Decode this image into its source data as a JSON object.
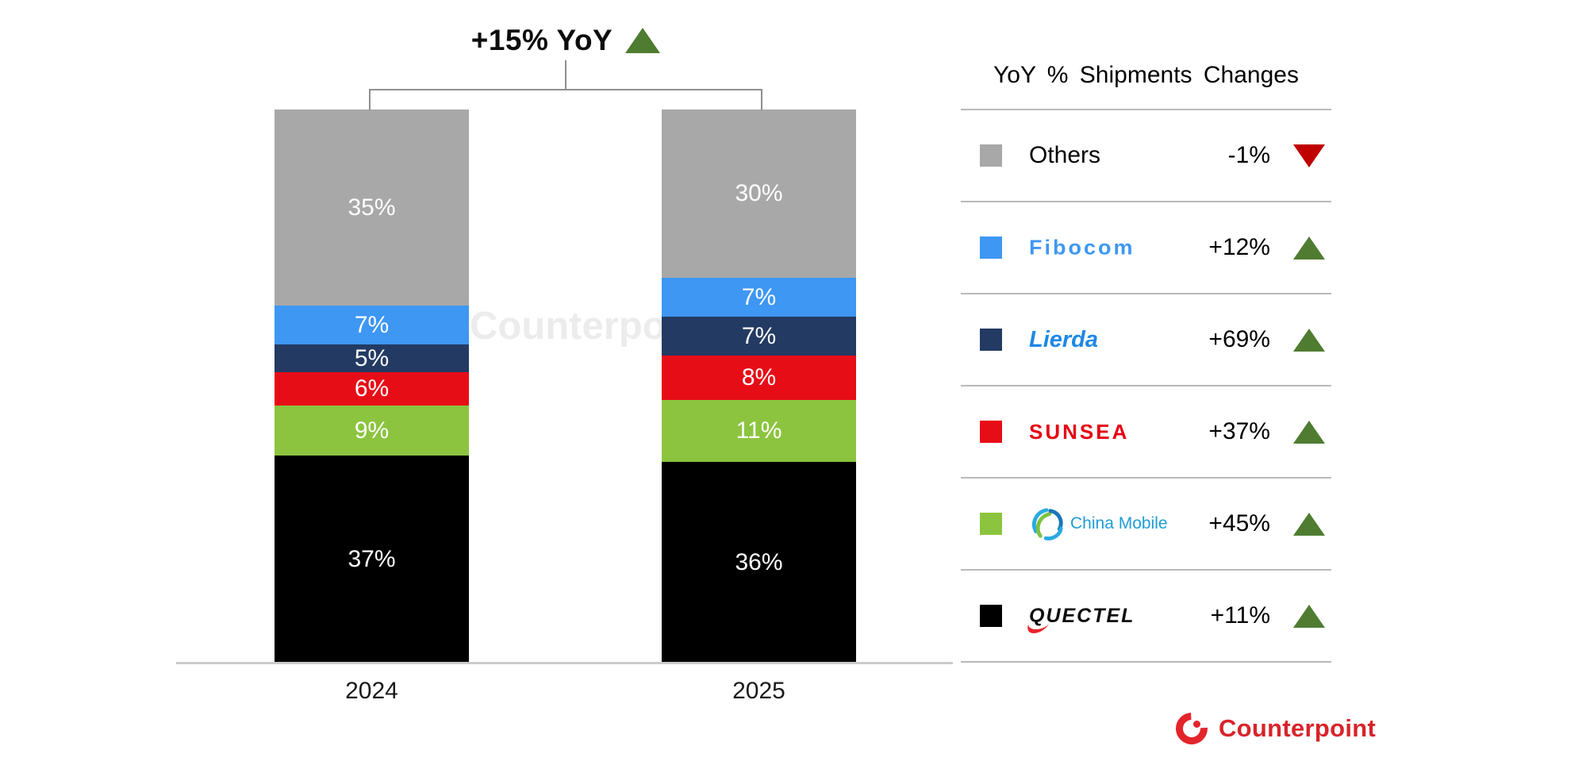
{
  "chart_title": {
    "label": "+15% YoY",
    "direction": "up"
  },
  "watermark": "Counterpoint",
  "chart_data": {
    "type": "bar",
    "subtype": "stacked-percent-column",
    "title": "+15% YoY",
    "categories": [
      "2024",
      "2025"
    ],
    "unit": "%",
    "legend_position": "right",
    "series": [
      {
        "name": "Others",
        "color": "#A8A8A8",
        "values": [
          35,
          30
        ]
      },
      {
        "name": "Fibocom",
        "color": "#3E97F3",
        "values": [
          7,
          7
        ]
      },
      {
        "name": "Lierda",
        "color": "#233A63",
        "values": [
          5,
          7
        ]
      },
      {
        "name": "Sunsea",
        "color": "#E70D17",
        "values": [
          6,
          8
        ]
      },
      {
        "name": "China Mobile",
        "color": "#8CC43F",
        "values": [
          9,
          11
        ]
      },
      {
        "name": "Quectel",
        "color": "#000000",
        "values": [
          37,
          36
        ]
      }
    ]
  },
  "legend": {
    "title": "YoY % Shipments Changes",
    "rows": [
      {
        "name": "Others",
        "display": "Others",
        "change": "-1%",
        "direction": "down"
      },
      {
        "name": "Fibocom",
        "display": "Fibocom",
        "change": "+12%",
        "direction": "up"
      },
      {
        "name": "Lierda",
        "display": "Lierda",
        "change": "+69%",
        "direction": "up"
      },
      {
        "name": "Sunsea",
        "display": "SUNSEA",
        "change": "+37%",
        "direction": "up"
      },
      {
        "name": "China Mobile",
        "display": "China Mobile",
        "change": "+45%",
        "direction": "up",
        "icon": "china-mobile-icon"
      },
      {
        "name": "Quectel",
        "display": "QUECTEL",
        "change": "+11%",
        "direction": "up"
      }
    ]
  },
  "colors": {
    "up_triangle": "#4F7C31",
    "down_triangle": "#C00000"
  },
  "footer": {
    "brand": "Counterpoint"
  }
}
